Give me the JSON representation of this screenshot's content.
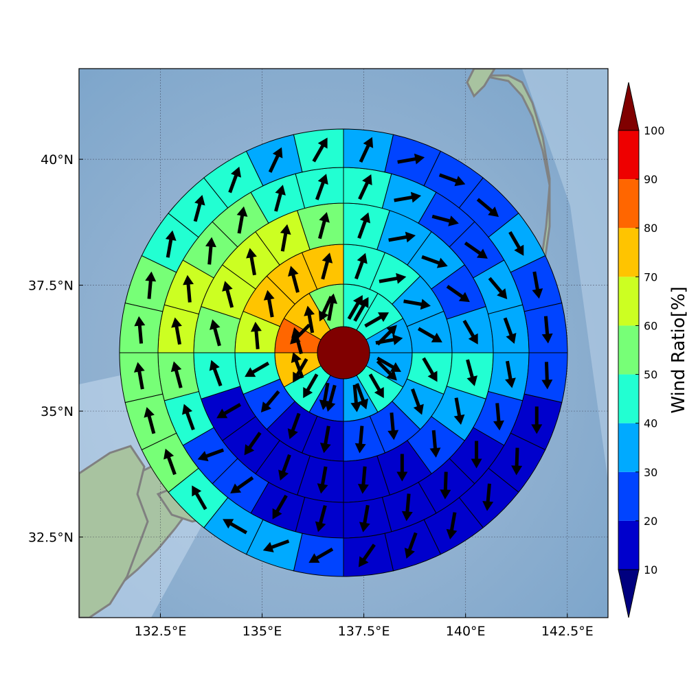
{
  "map": {
    "lon_range": [
      130.5,
      143.5
    ],
    "lat_range": [
      30.9,
      41.8
    ],
    "x_ticks": [
      "132.5°E",
      "135°E",
      "137.5°E",
      "140°E",
      "142.5°E"
    ],
    "x_tick_values": [
      132.5,
      135,
      137.5,
      140,
      142.5
    ],
    "y_ticks": [
      "40°N",
      "37.5°N",
      "35°N",
      "32.5°N"
    ],
    "y_tick_values": [
      40,
      37.5,
      35,
      32.5
    ],
    "grid": true
  },
  "colorbar": {
    "label": "Wind Ratio[%]",
    "ticks": [
      "10",
      "20",
      "30",
      "40",
      "50",
      "60",
      "70",
      "80",
      "90",
      "100"
    ],
    "colors": [
      "#0000cc",
      "#0044ff",
      "#00aaff",
      "#22ffd2",
      "#77ff77",
      "#ccff22",
      "#ffc400",
      "#ff6600",
      "#ee0000"
    ],
    "under_color": "#00007f",
    "over_color": "#800000"
  },
  "center_value_color": "#800000",
  "sectors": [
    {
      "ring": 1,
      "values": [
        48,
        40,
        40,
        28,
        48,
        75,
        85,
        85
      ]
    },
    {
      "ring": 2,
      "values": [
        40,
        40,
        38,
        35,
        40,
        30,
        28,
        45,
        75,
        85,
        75,
        55
      ]
    },
    {
      "ring": 3,
      "values": [
        45,
        40,
        38,
        35,
        40,
        35,
        28,
        20,
        15,
        18,
        28,
        40,
        65,
        75,
        75,
        75
      ]
    },
    {
      "ring": 4,
      "values": [
        45,
        35,
        30,
        28,
        35,
        45,
        38,
        28,
        18,
        15,
        15,
        15,
        15,
        18,
        45,
        55,
        65,
        65,
        65,
        55
      ]
    },
    {
      "ring": 5,
      "values": [
        42,
        30,
        28,
        28,
        32,
        38,
        38,
        28,
        18,
        15,
        12,
        12,
        12,
        15,
        22,
        25,
        45,
        55,
        62,
        62,
        58,
        52,
        45,
        45
      ]
    },
    {
      "ring": 6,
      "values": [
        35,
        20,
        20,
        28,
        30,
        28,
        20,
        20,
        15,
        12,
        12,
        12,
        12,
        15,
        20,
        30,
        38,
        45,
        55,
        55,
        55,
        55,
        50,
        45,
        42,
        40,
        38,
        42
      ]
    }
  ],
  "arrow_angles": [
    [
      30,
      45,
      135,
      160,
      190,
      210,
      225,
      205
    ],
    [
      30,
      60,
      80,
      120,
      150,
      175,
      195,
      210,
      340,
      345,
      350,
      10
    ],
    [
      20,
      80,
      100,
      120,
      150,
      160,
      175,
      185,
      190,
      200,
      220,
      240,
      355,
      350,
      345,
      15
    ],
    [
      20,
      80,
      110,
      125,
      150,
      165,
      170,
      175,
      180,
      185,
      190,
      200,
      215,
      240,
      340,
      345,
      345,
      350,
      10,
      15
    ],
    [
      25,
      80,
      105,
      125,
      140,
      160,
      170,
      175,
      180,
      182,
      185,
      190,
      195,
      210,
      235,
      250,
      340,
      345,
      350,
      355,
      5,
      10,
      15,
      20
    ],
    [
      25,
      80,
      110,
      130,
      150,
      170,
      175,
      178,
      180,
      182,
      185,
      190,
      200,
      215,
      240,
      250,
      300,
      330,
      340,
      345,
      350,
      355,
      5,
      10,
      15,
      20,
      25,
      30
    ]
  ]
}
